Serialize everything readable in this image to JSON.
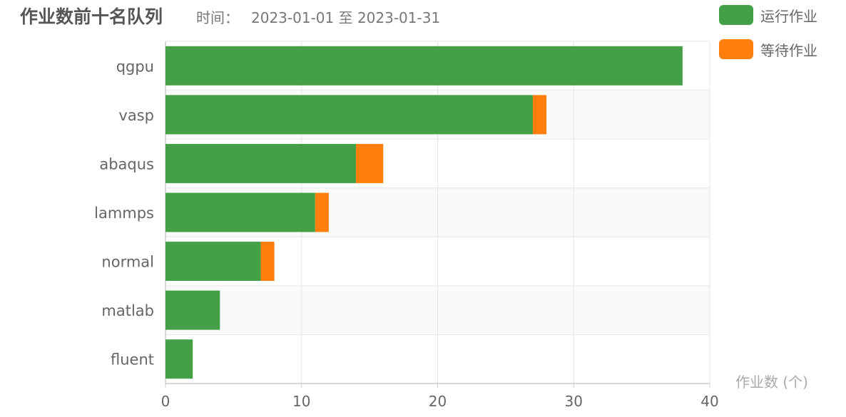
{
  "header": {
    "title": "作业数前十名队列",
    "time_label": "时间：",
    "time_range": "2023-01-01 至 2023-01-31"
  },
  "colors": {
    "running": "#43a047",
    "waiting": "#ff7f0e",
    "axis_text": "#666666",
    "grid": "#e6e6e6",
    "band": "#fafafa"
  },
  "chart_data": {
    "type": "bar",
    "orientation": "horizontal",
    "stacked": true,
    "categories": [
      "qgpu",
      "vasp",
      "abaqus",
      "lammps",
      "normal",
      "matlab",
      "fluent"
    ],
    "series": [
      {
        "name": "运行作业",
        "values": [
          38,
          27,
          14,
          11,
          7,
          4,
          2
        ]
      },
      {
        "name": "等待作业",
        "values": [
          0,
          1,
          2,
          1,
          1,
          0,
          0
        ]
      }
    ],
    "title": "作业数前十名队列",
    "subtitle": "时间： 2023-01-01 至 2023-01-31",
    "xlabel": "作业数 (个)",
    "ylabel": "",
    "xlim": [
      0,
      40
    ],
    "xticks": [
      "0",
      "10",
      "20",
      "30",
      "40"
    ],
    "grid": true,
    "legend_position": "top-right"
  }
}
